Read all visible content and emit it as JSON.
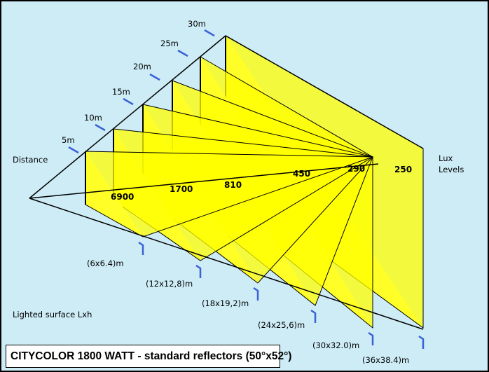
{
  "colors": {
    "background": "#cdecf6",
    "panel_fill": "#ffff00",
    "panel_fill_light": "#ffff9c",
    "line": "#000000",
    "tick": "#3a62d6",
    "frame": "#000000"
  },
  "labels": {
    "distance": "Distance",
    "lux_levels_line1": "Lux",
    "lux_levels_line2": "Levels",
    "lighted_surface": "Lighted surface Lxh",
    "caption": "CITYCOLOR 1800 WATT - standard reflectors (50°x52°)"
  },
  "distances": [
    "5m",
    "10m",
    "15m",
    "20m",
    "25m",
    "30m"
  ],
  "lux_values": [
    "6900",
    "1700",
    "810",
    "450",
    "290",
    "250"
  ],
  "surface_sizes": [
    "(6x6.4)m",
    "(12x12,8)m",
    "(18x19,2)m",
    "(24x25,6)m",
    "(30x32.0)m",
    "(36x38.4)m"
  ]
}
